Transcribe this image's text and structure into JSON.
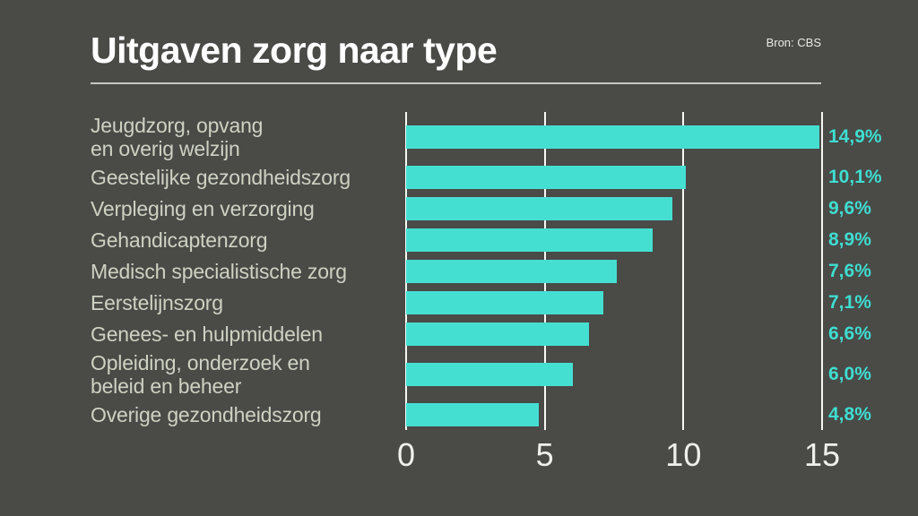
{
  "header": {
    "title": "Uitgaven zorg naar type",
    "source": "Bron: CBS"
  },
  "chart_data": {
    "type": "bar",
    "orientation": "horizontal",
    "title": "Uitgaven zorg naar type",
    "source": "Bron: CBS",
    "unit": "%",
    "xlim": [
      0,
      15
    ],
    "x_ticks": [
      0,
      5,
      10,
      15
    ],
    "x_tick_labels": [
      "0",
      "5",
      "10",
      "15"
    ],
    "grid": true,
    "legend": "none",
    "bars": [
      {
        "category": "Jeugdzorg, opvang en overig welzijn",
        "label_lines": [
          "Jeugdzorg, opvang",
          "en overig welzijn"
        ],
        "value": 14.9,
        "value_label": "14,9%"
      },
      {
        "category": "Geestelijke gezondheidszorg",
        "label_lines": [
          "Geestelijke gezondheidszorg"
        ],
        "value": 10.1,
        "value_label": "10,1%"
      },
      {
        "category": "Verpleging en verzorging",
        "label_lines": [
          "Verpleging en verzorging"
        ],
        "value": 9.6,
        "value_label": "9,6%"
      },
      {
        "category": "Gehandicaptenzorg",
        "label_lines": [
          "Gehandicaptenzorg"
        ],
        "value": 8.9,
        "value_label": "8,9%"
      },
      {
        "category": "Medisch specialistische zorg",
        "label_lines": [
          "Medisch specialistische zorg"
        ],
        "value": 7.6,
        "value_label": "7,6%"
      },
      {
        "category": "Eerstelijnszorg",
        "label_lines": [
          "Eerstelijnszorg"
        ],
        "value": 7.1,
        "value_label": "7,1%"
      },
      {
        "category": "Genees- en hulpmiddelen",
        "label_lines": [
          "Genees- en hulpmiddelen"
        ],
        "value": 6.6,
        "value_label": "6,6%"
      },
      {
        "category": "Opleiding, onderzoek en beleid en beheer",
        "label_lines": [
          "Opleiding, onderzoek en",
          "beleid en beheer"
        ],
        "value": 6.0,
        "value_label": "6,0%"
      },
      {
        "category": "Overige gezondheidszorg",
        "label_lines": [
          "Overige gezondheidszorg"
        ],
        "value": 4.8,
        "value_label": "4,8%"
      }
    ],
    "colors": {
      "background": "#4a4a47",
      "bar": "#45dfd2",
      "value_text": "#3eddd0",
      "category_text": "#ced2c3",
      "gridline": "#f7f7f4",
      "title_text": "#ffffff",
      "tick_text": "#efefeb",
      "divider": "#c6c6c3"
    }
  }
}
